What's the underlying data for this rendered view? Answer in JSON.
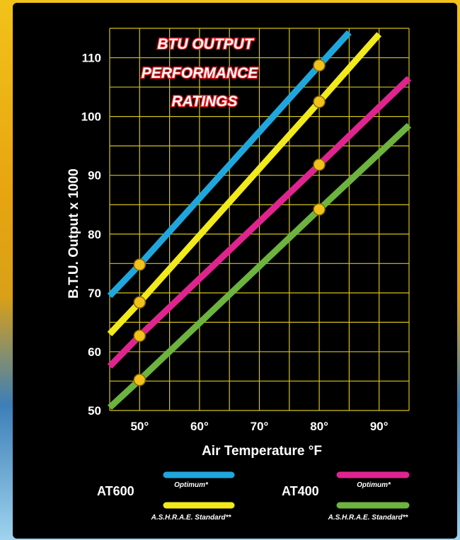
{
  "chart_data": {
    "type": "line",
    "title": [
      "BTU OUTPUT",
      "PERFORMANCE",
      "RATINGS"
    ],
    "xlabel": "Air Temperature °F",
    "ylabel": "B.T.U. Output x 1000",
    "xlim": [
      45,
      95
    ],
    "ylim": [
      50,
      115
    ],
    "x_ticks": [
      50,
      60,
      70,
      80,
      90
    ],
    "x_tick_labels": [
      "50°",
      "60°",
      "70°",
      "80°",
      "90°"
    ],
    "y_ticks": [
      50,
      60,
      70,
      80,
      90,
      100,
      110
    ],
    "y_tick_labels": [
      "50",
      "60",
      "70",
      "80",
      "90",
      "100",
      "110"
    ],
    "grid": true,
    "series": [
      {
        "model": "AT600",
        "name": "Optimum*",
        "color": "#1fa7dd",
        "x": [
          45,
          50,
          80,
          85
        ],
        "values": [
          69.5,
          74.8,
          108.7,
          114.3
        ],
        "marked_x": [
          50,
          80
        ]
      },
      {
        "model": "AT600",
        "name": "A.S.H.R.A.E. Standard**",
        "color": "#f2ea1a",
        "x": [
          45,
          50,
          80,
          90
        ],
        "values": [
          63.0,
          68.4,
          102.5,
          114.0
        ],
        "marked_x": [
          50,
          80
        ]
      },
      {
        "model": "AT400",
        "name": "Optimum*",
        "color": "#e0248f",
        "x": [
          45,
          50,
          80,
          95
        ],
        "values": [
          57.5,
          62.7,
          91.8,
          106.5
        ],
        "marked_x": [
          50,
          80
        ]
      },
      {
        "model": "AT400",
        "name": "A.S.H.R.A.E. Standard**",
        "color": "#6db33f",
        "x": [
          45,
          50,
          80,
          95
        ],
        "values": [
          50.5,
          55.2,
          84.2,
          98.5
        ],
        "marked_x": [
          50,
          80
        ]
      }
    ],
    "legend": {
      "placement": "bottom",
      "groups": [
        {
          "model": "AT600",
          "entries": [
            "Optimum*",
            "A.S.H.R.A.E. Standard**"
          ]
        },
        {
          "model": "AT400",
          "entries": [
            "Optimum*",
            "A.S.H.R.A.E. Standard**"
          ]
        }
      ]
    },
    "colors": {
      "grid": "#d4c21c",
      "marker": "#f2c21a",
      "background": "#000000",
      "title_outline": "#e0181e"
    }
  }
}
